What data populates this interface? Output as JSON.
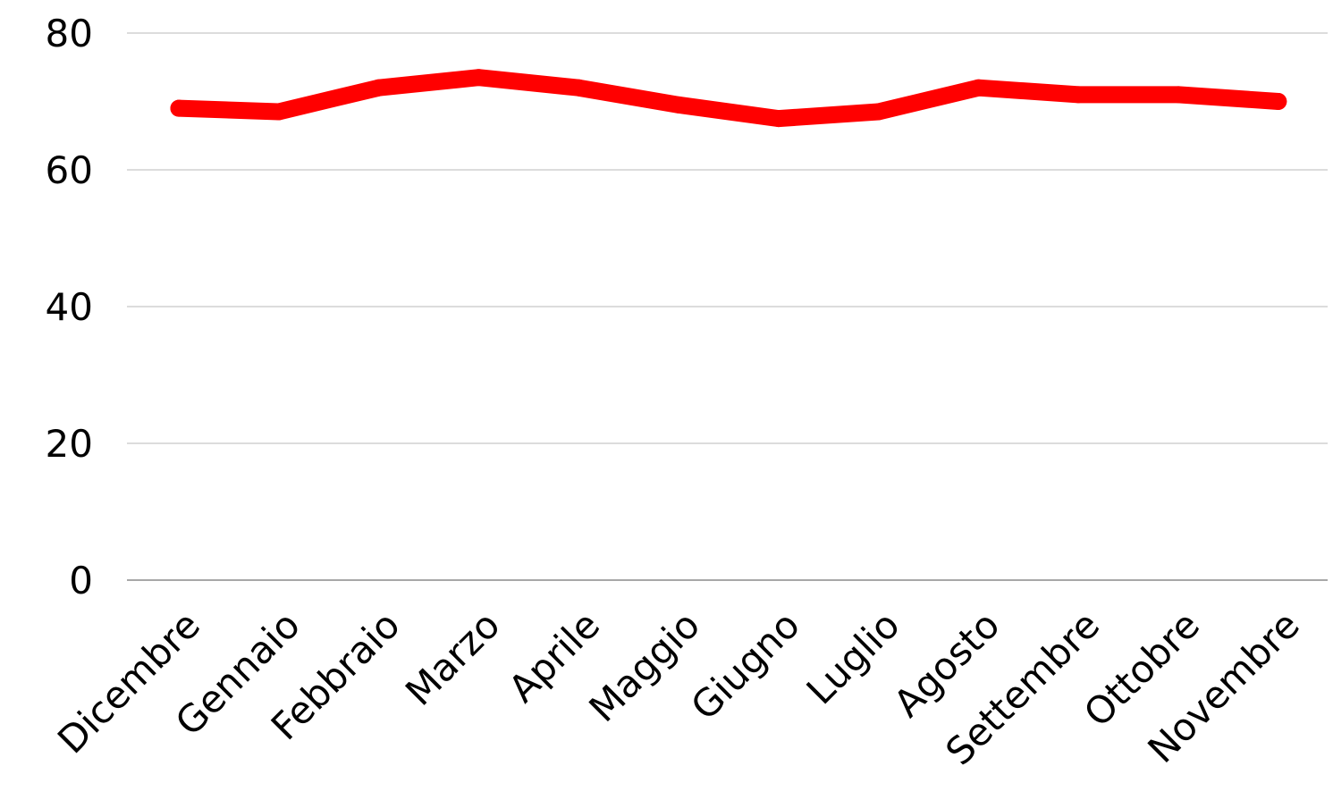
{
  "chart_data": {
    "type": "line",
    "title": "",
    "xlabel": "",
    "ylabel": "",
    "categories": [
      "Dicembre",
      "Gennaio",
      "Febbraio",
      "Marzo",
      "Aprile",
      "Maggio",
      "Giugno",
      "Luglio",
      "Agosto",
      "Settembre",
      "Ottobre",
      "Novembre"
    ],
    "series": [
      {
        "values": [
          69,
          68.5,
          72,
          73.5,
          72,
          69.5,
          67.5,
          68.5,
          72,
          71,
          71,
          70
        ],
        "color": "#ff0000"
      }
    ],
    "yticks": [
      "0",
      "20",
      "40",
      "60",
      "80"
    ],
    "ylim": [
      0,
      80
    ],
    "grid": true,
    "legend": "none",
    "colors": {
      "line": "#ff0000",
      "grid": "#c8c8c8",
      "baseline": "#8c8c8c",
      "text": "#000000"
    }
  }
}
